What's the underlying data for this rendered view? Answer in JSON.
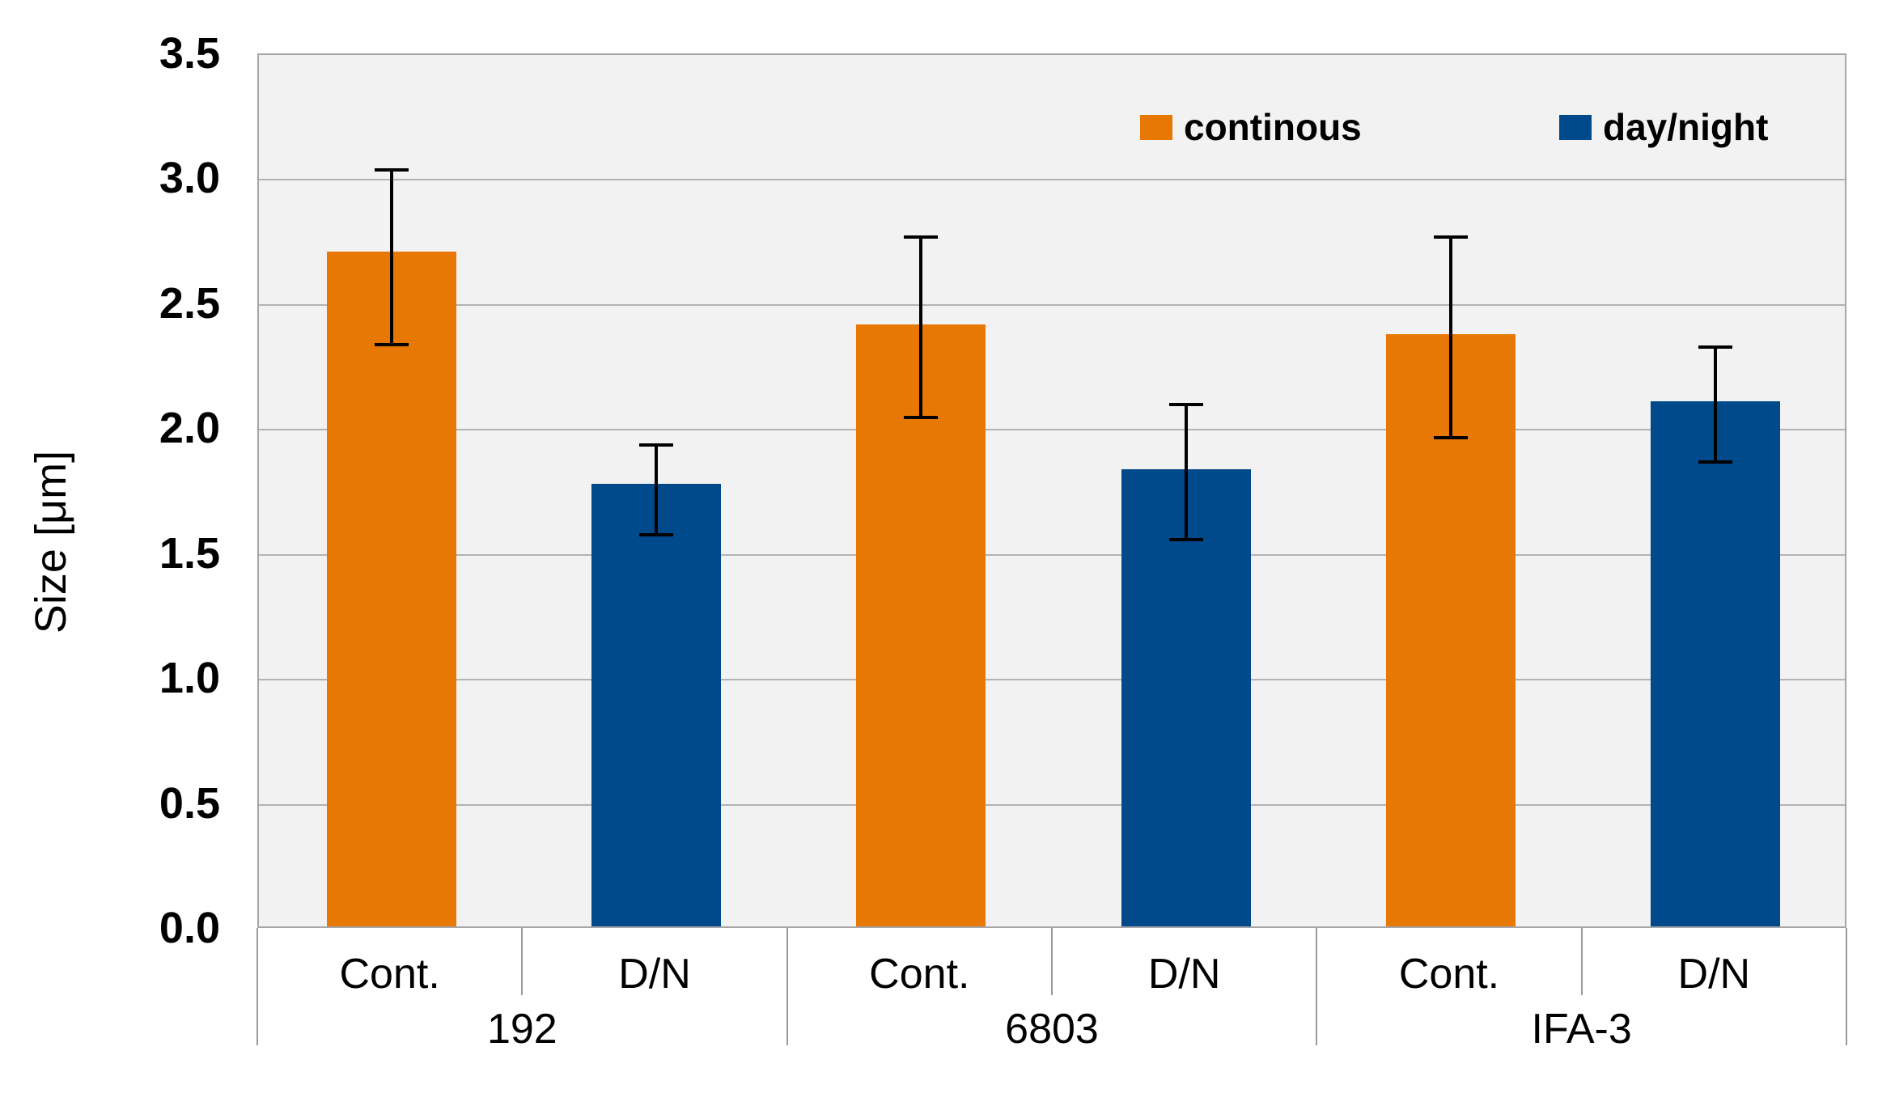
{
  "chart_data": {
    "type": "bar",
    "title": "",
    "ylabel": "Size [μm]",
    "xlabel": "",
    "ylim": [
      0,
      3.5
    ],
    "ytick_step": 0.5,
    "yticks": [
      "3.5",
      "3.0",
      "2.5",
      "2.0",
      "1.5",
      "1.0",
      "0.5",
      "0.0"
    ],
    "grid": "horizontal",
    "plot_background": "#F2F2F2",
    "gridline_color": "#B3B3B3",
    "errorbar_color": "#000000",
    "legend_position": "top-right-inside",
    "legend": [
      {
        "name": "continous",
        "color": "#E87804"
      },
      {
        "name": "day/night",
        "color": "#004A8C"
      }
    ],
    "groups": [
      {
        "label": "192",
        "bars": [
          {
            "x_label": "Cont.",
            "series": "continous",
            "value": 2.7,
            "err_lo": 2.34,
            "err_hi": 3.04
          },
          {
            "x_label": "D/N",
            "series": "day/night",
            "value": 1.77,
            "err_lo": 1.58,
            "err_hi": 1.94
          }
        ]
      },
      {
        "label": "6803",
        "bars": [
          {
            "x_label": "Cont.",
            "series": "continous",
            "value": 2.41,
            "err_lo": 2.05,
            "err_hi": 2.77
          },
          {
            "x_label": "D/N",
            "series": "day/night",
            "value": 1.83,
            "err_lo": 1.56,
            "err_hi": 2.1
          }
        ]
      },
      {
        "label": "IFA-3",
        "bars": [
          {
            "x_label": "Cont.",
            "series": "continous",
            "value": 2.37,
            "err_lo": 1.97,
            "err_hi": 2.77
          },
          {
            "x_label": "D/N",
            "series": "day/night",
            "value": 2.1,
            "err_lo": 1.87,
            "err_hi": 2.33
          }
        ]
      }
    ]
  }
}
